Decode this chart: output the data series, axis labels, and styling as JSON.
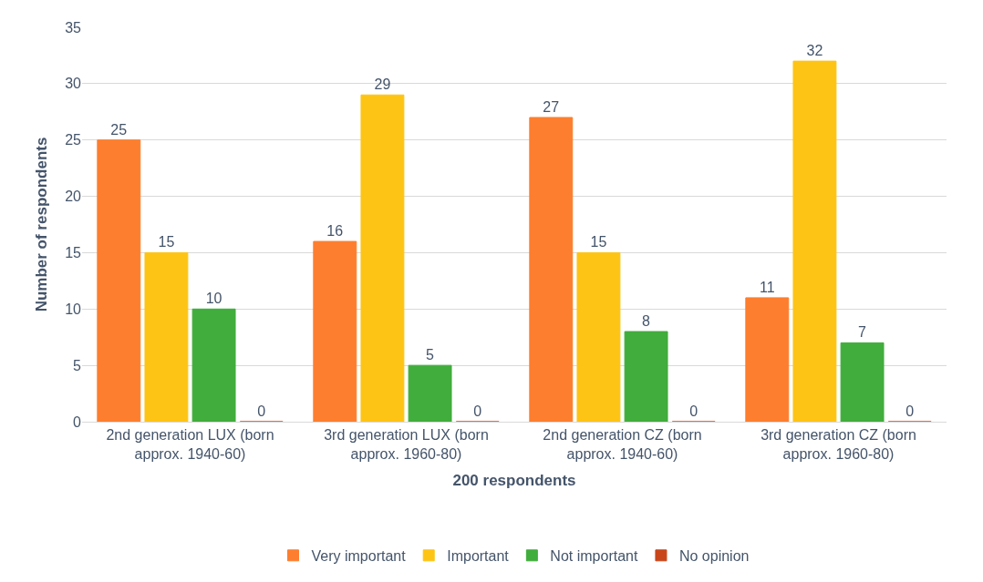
{
  "chart_data": {
    "type": "bar",
    "xlabel": "200 respondents",
    "ylabel": "Number of respondents",
    "categories": [
      "2nd generation LUX (born approx. 1940-60)",
      "3rd generation LUX (born approx. 1960-80)",
      "2nd generation CZ (born approx. 1940-60)",
      "3rd generation CZ (born approx. 1960-80)"
    ],
    "series": [
      {
        "name": "Very important",
        "color": "#fd7e2e",
        "values": [
          25,
          16,
          27,
          11
        ]
      },
      {
        "name": "Important",
        "color": "#fec415",
        "values": [
          15,
          29,
          15,
          32
        ]
      },
      {
        "name": "Not important",
        "color": "#40ad3c",
        "values": [
          10,
          5,
          8,
          7
        ]
      },
      {
        "name": "No opinion",
        "color": "#c8461a",
        "values": [
          0,
          0,
          0,
          0
        ]
      }
    ],
    "ylim": [
      0,
      35
    ],
    "yticks": [
      0,
      5,
      10,
      15,
      20,
      25,
      30,
      35
    ],
    "grid": "y",
    "legend": "bottom",
    "data_labels": true
  }
}
